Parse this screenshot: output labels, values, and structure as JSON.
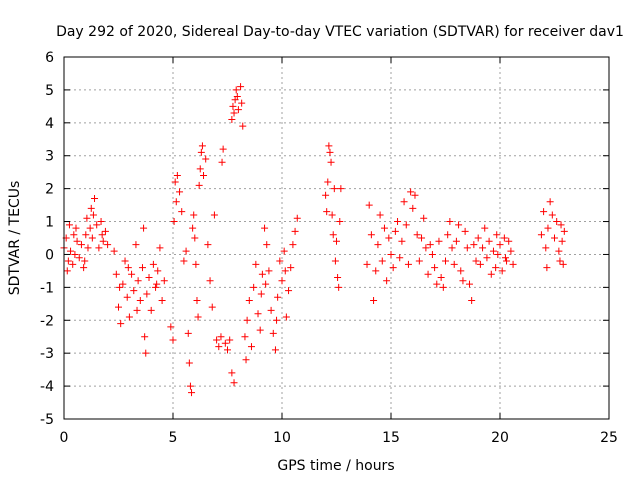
{
  "chart_data": {
    "type": "scatter",
    "title": "Day 292 of 2020, Sidereal Day-to-day VTEC variation (SDTVAR) for receiver dav1",
    "xlabel": "GPS time / hours",
    "ylabel": "SDTVAR / TECUs",
    "xlim": [
      0,
      25
    ],
    "ylim": [
      -5,
      6
    ],
    "xticks": [
      0,
      5,
      10,
      15,
      20,
      25
    ],
    "yticks": [
      -5,
      -4,
      -3,
      -2,
      -1,
      0,
      1,
      2,
      3,
      4,
      5,
      6
    ],
    "xtick_labels": [
      "0",
      "5",
      "10",
      "15",
      "20",
      "25"
    ],
    "ytick_labels": [
      "-5",
      "-4",
      "-3",
      "-2",
      "-1",
      "0",
      "1",
      "2",
      "3",
      "4",
      "5",
      "6"
    ],
    "grid": true,
    "marker": "plus",
    "color": "#ff0000",
    "series": [
      {
        "name": "dav1",
        "points": [
          [
            0.0,
            0.2
          ],
          [
            0.1,
            0.5
          ],
          [
            0.2,
            -0.2
          ],
          [
            0.25,
            0.9
          ],
          [
            0.3,
            0.1
          ],
          [
            0.4,
            -0.3
          ],
          [
            0.45,
            0.6
          ],
          [
            0.5,
            0.0
          ],
          [
            0.6,
            0.4
          ],
          [
            0.7,
            -0.1
          ],
          [
            0.8,
            0.3
          ],
          [
            0.9,
            -0.4
          ],
          [
            1.0,
            0.6
          ],
          [
            1.05,
            1.1
          ],
          [
            1.1,
            0.2
          ],
          [
            1.2,
            0.8
          ],
          [
            1.25,
            1.4
          ],
          [
            1.3,
            0.5
          ],
          [
            1.4,
            1.7
          ],
          [
            1.5,
            0.9
          ],
          [
            1.6,
            0.2
          ],
          [
            1.7,
            1.0
          ],
          [
            1.8,
            0.4
          ],
          [
            1.9,
            0.7
          ],
          [
            2.0,
            0.3
          ],
          [
            0.15,
            -0.5
          ],
          [
            0.55,
            0.8
          ],
          [
            0.95,
            -0.2
          ],
          [
            1.35,
            1.2
          ],
          [
            1.75,
            0.6
          ],
          [
            2.3,
            0.1
          ],
          [
            2.4,
            -0.6
          ],
          [
            2.5,
            -1.6
          ],
          [
            2.6,
            -2.1
          ],
          [
            2.7,
            -0.9
          ],
          [
            2.8,
            -0.2
          ],
          [
            2.9,
            -1.3
          ],
          [
            3.0,
            -1.9
          ],
          [
            3.1,
            -0.6
          ],
          [
            3.2,
            -1.1
          ],
          [
            3.3,
            0.3
          ],
          [
            3.4,
            -0.8
          ],
          [
            3.5,
            -1.4
          ],
          [
            3.6,
            -0.4
          ],
          [
            3.7,
            -2.5
          ],
          [
            3.75,
            -3.0
          ],
          [
            3.8,
            -1.2
          ],
          [
            3.9,
            -0.7
          ],
          [
            4.0,
            -1.7
          ],
          [
            4.1,
            -0.3
          ],
          [
            4.2,
            -1.0
          ],
          [
            4.3,
            -0.5
          ],
          [
            4.4,
            0.2
          ],
          [
            4.5,
            -1.4
          ],
          [
            4.6,
            -0.8
          ],
          [
            2.55,
            -1.0
          ],
          [
            2.95,
            -0.4
          ],
          [
            3.35,
            -1.7
          ],
          [
            3.65,
            0.8
          ],
          [
            4.25,
            -0.9
          ],
          [
            4.9,
            -2.2
          ],
          [
            5.0,
            -2.6
          ],
          [
            5.05,
            1.0
          ],
          [
            5.1,
            2.2
          ],
          [
            5.15,
            1.6
          ],
          [
            5.2,
            2.4
          ],
          [
            5.3,
            1.9
          ],
          [
            5.4,
            1.3
          ],
          [
            5.5,
            -0.2
          ],
          [
            5.6,
            0.1
          ],
          [
            5.7,
            -2.4
          ],
          [
            5.75,
            -3.3
          ],
          [
            5.8,
            -4.0
          ],
          [
            5.85,
            -4.2
          ],
          [
            5.9,
            0.8
          ],
          [
            5.95,
            1.2
          ],
          [
            6.0,
            0.5
          ],
          [
            6.05,
            -0.3
          ],
          [
            6.1,
            -1.4
          ],
          [
            6.15,
            -1.9
          ],
          [
            6.2,
            2.1
          ],
          [
            6.25,
            2.6
          ],
          [
            6.3,
            3.1
          ],
          [
            6.35,
            3.3
          ],
          [
            6.4,
            2.4
          ],
          [
            6.5,
            2.9
          ],
          [
            6.6,
            0.3
          ],
          [
            6.7,
            -0.8
          ],
          [
            6.8,
            -1.6
          ],
          [
            6.9,
            1.2
          ],
          [
            7.0,
            -2.6
          ],
          [
            7.1,
            -2.8
          ],
          [
            7.2,
            -2.5
          ],
          [
            7.25,
            2.8
          ],
          [
            7.3,
            3.2
          ],
          [
            7.4,
            -2.7
          ],
          [
            7.5,
            -2.9
          ],
          [
            7.6,
            -2.6
          ],
          [
            7.7,
            -3.6
          ],
          [
            7.8,
            -3.9
          ],
          [
            7.7,
            4.1
          ],
          [
            7.75,
            4.5
          ],
          [
            7.8,
            4.3
          ],
          [
            7.85,
            4.7
          ],
          [
            7.9,
            5.0
          ],
          [
            7.95,
            4.8
          ],
          [
            8.0,
            4.4
          ],
          [
            8.1,
            5.1
          ],
          [
            8.15,
            4.6
          ],
          [
            8.2,
            3.9
          ],
          [
            8.3,
            -2.5
          ],
          [
            8.35,
            -3.2
          ],
          [
            8.4,
            -2.0
          ],
          [
            8.5,
            -1.4
          ],
          [
            8.6,
            -2.8
          ],
          [
            8.7,
            -1.0
          ],
          [
            8.8,
            -0.3
          ],
          [
            8.9,
            -1.8
          ],
          [
            9.0,
            -2.3
          ],
          [
            9.05,
            -1.2
          ],
          [
            9.1,
            -0.6
          ],
          [
            9.2,
            0.8
          ],
          [
            9.3,
            0.3
          ],
          [
            9.4,
            -0.5
          ],
          [
            9.5,
            -1.7
          ],
          [
            9.6,
            -2.4
          ],
          [
            9.7,
            -2.9
          ],
          [
            9.8,
            -1.3
          ],
          [
            9.9,
            -0.2
          ],
          [
            10.0,
            -0.8
          ],
          [
            10.1,
            0.1
          ],
          [
            10.2,
            -1.9
          ],
          [
            10.3,
            -1.1
          ],
          [
            10.4,
            -0.4
          ],
          [
            10.5,
            0.3
          ],
          [
            10.6,
            0.7
          ],
          [
            10.7,
            1.1
          ],
          [
            9.25,
            -0.9
          ],
          [
            9.75,
            -2.0
          ],
          [
            10.15,
            -0.5
          ],
          [
            12.0,
            1.8
          ],
          [
            12.1,
            2.2
          ],
          [
            12.15,
            3.3
          ],
          [
            12.2,
            3.1
          ],
          [
            12.25,
            2.8
          ],
          [
            12.3,
            1.2
          ],
          [
            12.35,
            0.6
          ],
          [
            12.4,
            2.0
          ],
          [
            12.45,
            -0.2
          ],
          [
            12.5,
            0.4
          ],
          [
            12.55,
            -0.7
          ],
          [
            12.6,
            -1.0
          ],
          [
            12.65,
            1.0
          ],
          [
            12.7,
            2.0
          ],
          [
            12.05,
            1.3
          ],
          [
            13.9,
            -0.3
          ],
          [
            14.0,
            1.5
          ],
          [
            14.1,
            0.6
          ],
          [
            14.2,
            -1.4
          ],
          [
            14.3,
            -0.5
          ],
          [
            14.4,
            0.3
          ],
          [
            14.5,
            1.2
          ],
          [
            14.6,
            -0.2
          ],
          [
            14.7,
            0.8
          ],
          [
            14.8,
            -0.8
          ],
          [
            14.9,
            0.5
          ],
          [
            15.0,
            0.0
          ],
          [
            15.1,
            -0.4
          ],
          [
            15.2,
            0.7
          ],
          [
            15.3,
            1.0
          ],
          [
            15.4,
            -0.1
          ],
          [
            15.5,
            0.4
          ],
          [
            15.6,
            1.6
          ],
          [
            15.7,
            0.9
          ],
          [
            15.8,
            -0.3
          ],
          [
            15.9,
            1.9
          ],
          [
            16.0,
            1.4
          ],
          [
            16.1,
            1.8
          ],
          [
            16.2,
            0.6
          ],
          [
            16.3,
            -0.2
          ],
          [
            16.4,
            0.5
          ],
          [
            16.5,
            1.1
          ],
          [
            16.6,
            0.2
          ],
          [
            16.7,
            -0.6
          ],
          [
            16.8,
            0.3
          ],
          [
            16.9,
            0.0
          ],
          [
            17.0,
            -0.4
          ],
          [
            17.1,
            -0.9
          ],
          [
            17.2,
            0.4
          ],
          [
            17.3,
            -0.7
          ],
          [
            17.4,
            -1.0
          ],
          [
            17.5,
            -0.2
          ],
          [
            17.6,
            0.6
          ],
          [
            17.7,
            1.0
          ],
          [
            17.8,
            0.2
          ],
          [
            17.9,
            -0.3
          ],
          [
            18.0,
            0.4
          ],
          [
            18.1,
            0.9
          ],
          [
            18.2,
            -0.5
          ],
          [
            18.3,
            -0.8
          ],
          [
            18.4,
            0.7
          ],
          [
            18.5,
            0.2
          ],
          [
            18.6,
            -0.9
          ],
          [
            18.7,
            -1.4
          ],
          [
            18.8,
            0.3
          ],
          [
            18.9,
            -0.2
          ],
          [
            19.0,
            0.5
          ],
          [
            19.1,
            -0.3
          ],
          [
            19.2,
            0.2
          ],
          [
            19.3,
            0.8
          ],
          [
            19.4,
            -0.1
          ],
          [
            19.5,
            0.4
          ],
          [
            19.6,
            -0.6
          ],
          [
            19.7,
            0.1
          ],
          [
            19.8,
            -0.4
          ],
          [
            19.9,
            0.0
          ],
          [
            20.0,
            0.3
          ],
          [
            20.1,
            -0.5
          ],
          [
            20.2,
            0.5
          ],
          [
            20.3,
            -0.2
          ],
          [
            20.4,
            0.4
          ],
          [
            20.5,
            0.1
          ],
          [
            20.6,
            -0.3
          ],
          [
            19.85,
            0.6
          ],
          [
            20.25,
            -0.1
          ],
          [
            21.9,
            0.6
          ],
          [
            22.0,
            1.3
          ],
          [
            22.1,
            0.2
          ],
          [
            22.15,
            -0.4
          ],
          [
            22.2,
            0.8
          ],
          [
            22.3,
            1.6
          ],
          [
            22.4,
            1.2
          ],
          [
            22.5,
            0.5
          ],
          [
            22.6,
            1.0
          ],
          [
            22.7,
            0.1
          ],
          [
            22.75,
            -0.2
          ],
          [
            22.8,
            0.9
          ],
          [
            22.85,
            0.4
          ],
          [
            22.9,
            -0.3
          ],
          [
            22.95,
            0.7
          ]
        ]
      }
    ]
  }
}
